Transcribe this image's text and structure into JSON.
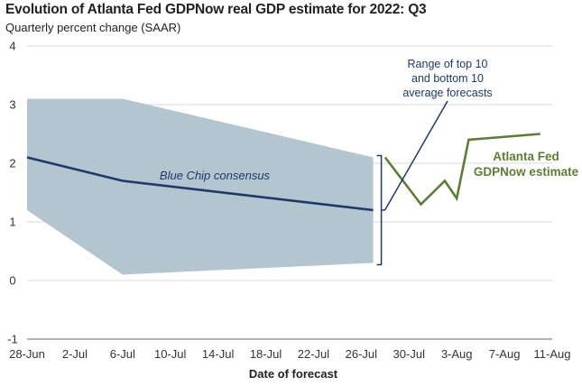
{
  "chart_data": {
    "type": "line",
    "title": "Evolution of Atlanta Fed GDPNow real GDP estimate for 2022: Q3",
    "subtitle": "Quarterly percent change (SAAR)",
    "xlabel": "Date of forecast",
    "ylabel": "",
    "x_ticks": [
      "28-Jun",
      "2-Jul",
      "6-Jul",
      "10-Jul",
      "14-Jul",
      "18-Jul",
      "22-Jul",
      "26-Jul",
      "30-Jul",
      "3-Aug",
      "7-Aug",
      "11-Aug"
    ],
    "x_tick_days": [
      0,
      4,
      8,
      12,
      16,
      20,
      24,
      28,
      32,
      36,
      40,
      44
    ],
    "y_ticks": [
      4,
      3,
      2,
      1,
      0,
      -1
    ],
    "ylim": [
      -1,
      4
    ],
    "xlim_days": [
      0,
      44
    ],
    "grid": "horizontal",
    "colors": {
      "band": "#b3c5cf",
      "bluechip": "#1b3a6b",
      "gdpnow": "#5b7f32",
      "grid": "#d9d9d9",
      "bracket": "#1b3a6b"
    },
    "band": {
      "name": "Range of top 10 and bottom 10 average forecasts",
      "x_days": [
        0,
        8,
        29
      ],
      "upper": [
        3.1,
        3.1,
        2.1
      ],
      "lower": [
        1.2,
        0.1,
        0.3
      ]
    },
    "series": [
      {
        "name": "Blue Chip consensus",
        "x_days": [
          0,
          8,
          29
        ],
        "values": [
          2.1,
          1.7,
          1.2
        ]
      },
      {
        "name": "Atlanta Fed GDPNow estimate",
        "x_days": [
          30,
          33,
          35,
          36,
          37,
          43
        ],
        "values": [
          2.1,
          1.3,
          1.7,
          1.4,
          2.4,
          2.5
        ]
      }
    ],
    "annotations": {
      "range_line1": "Range of top 10",
      "range_line2": "and bottom 10",
      "range_line3": "average forecasts",
      "bluechip_label": "Blue Chip consensus",
      "gdpnow_line1": "Atlanta Fed",
      "gdpnow_line2": "GDPNow estimate"
    }
  }
}
